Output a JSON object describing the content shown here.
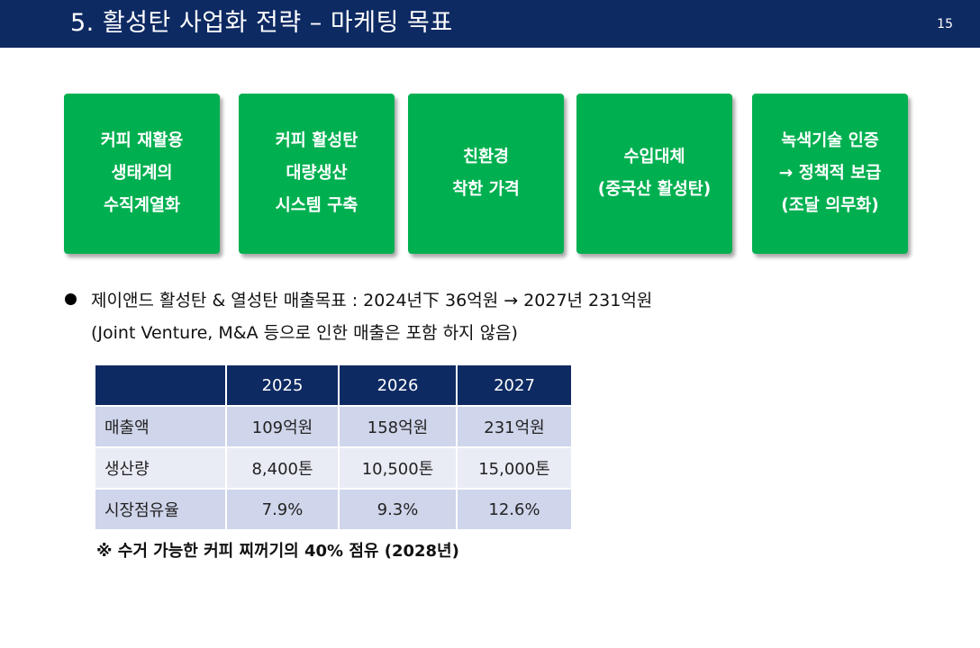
{
  "header": {
    "title": "5.  활성탄 사업화 전략 – 마케팅 목표",
    "page_number": "15"
  },
  "goals": [
    {
      "text": "커피 재활용\n생태계의\n수직계열화"
    },
    {
      "text": "커피 활성탄\n대량생산\n시스템 구축"
    },
    {
      "text": "친환경\n착한 가격"
    },
    {
      "text": "수입대체\n(중국산 활성탄)"
    },
    {
      "text": "녹색기술 인증\n→ 정책적 보급\n(조달 의무화)"
    }
  ],
  "bullet": {
    "line1": "제이앤드 활성탄 & 열성탄 매출목표 : 2024년下 36억원 → 2027년 231억원",
    "line2": "(Joint Venture, M&A 등으로 인한 매출은 포함 하지 않음)"
  },
  "table": {
    "headers": [
      "",
      "2025",
      "2026",
      "2027"
    ],
    "rows": [
      [
        "매출액",
        "109억원",
        "158억원",
        "231억원"
      ],
      [
        "생산량",
        "8,400톤",
        "10,500톤",
        "15,000톤"
      ],
      [
        "시장점유율",
        "7.9%",
        "9.3%",
        "12.6%"
      ]
    ]
  },
  "footnote": "※ 수거 가능한 커피 찌꺼기의 40% 점유 (2028년)",
  "colors": {
    "header_bg": "#0e2a63",
    "goal_box": "#00b050",
    "table_row_dark": "#cfd5ea",
    "table_row_light": "#e9ebf5"
  }
}
